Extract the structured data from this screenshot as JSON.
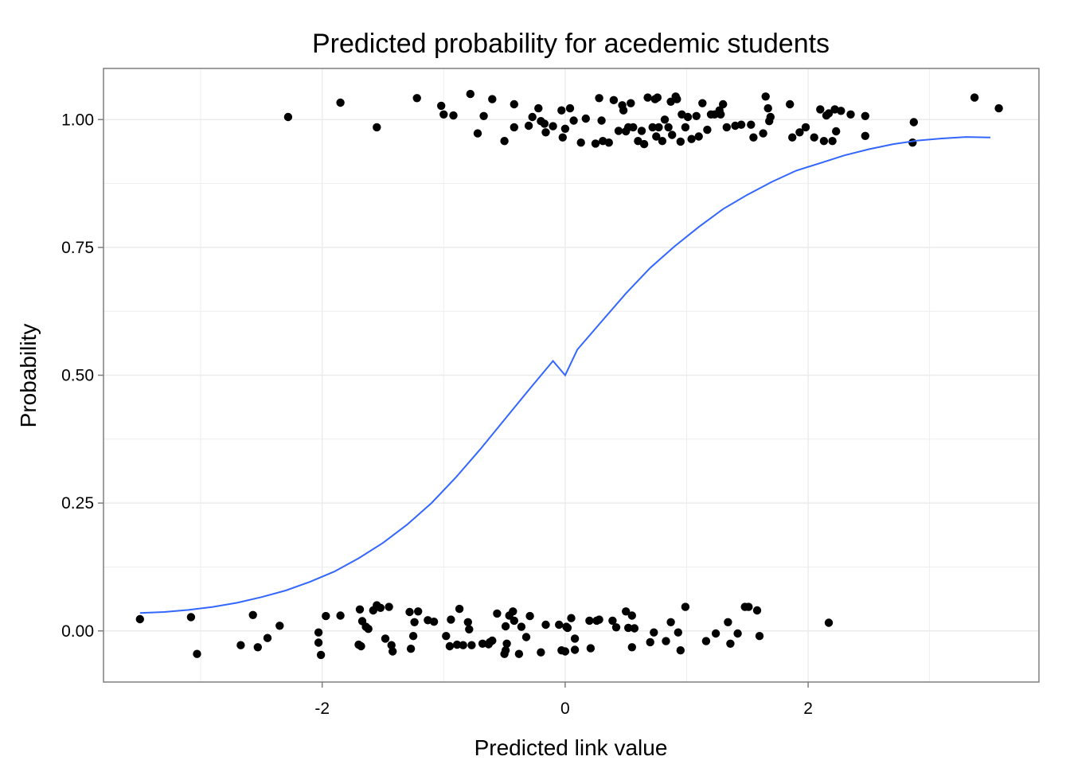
{
  "chart_data": {
    "type": "scatter",
    "title": "Predicted probability for acedemic students",
    "xlabel": "Predicted link value",
    "ylabel": "Probability",
    "xlim": [
      -3.8,
      3.9
    ],
    "ylim": [
      -0.1,
      1.1
    ],
    "x_ticks": [
      {
        "value": -2,
        "label": "-2"
      },
      {
        "value": 0,
        "label": "0"
      },
      {
        "value": 2,
        "label": "2"
      }
    ],
    "y_ticks": [
      {
        "value": 0,
        "label": "0.00"
      },
      {
        "value": 0.25,
        "label": "0.25"
      },
      {
        "value": 0.5,
        "label": "0.50"
      },
      {
        "value": 0.75,
        "label": "0.75"
      },
      {
        "value": 1,
        "label": "1.00"
      }
    ],
    "grid": true,
    "legend": "none",
    "colors": {
      "points": "#000000",
      "curve": "#3366ff",
      "grid": "#ebebeb",
      "panel_border": "#7f7f7f"
    },
    "series": [
      {
        "type": "scatter",
        "points": [
          [
            -2.28,
            1.005
          ],
          [
            -1.85,
            1.033
          ],
          [
            -1.55,
            0.985
          ],
          [
            -1.22,
            1.042
          ],
          [
            -1.02,
            1.027
          ],
          [
            -1.0,
            1.01
          ],
          [
            -0.92,
            1.008
          ],
          [
            -0.78,
            1.05
          ],
          [
            -0.72,
            0.973
          ],
          [
            -0.67,
            1.007
          ],
          [
            -0.6,
            1.04
          ],
          [
            -0.5,
            0.958
          ],
          [
            -0.42,
            1.03
          ],
          [
            -0.42,
            0.985
          ],
          [
            -0.3,
            0.988
          ],
          [
            -0.27,
            1.005
          ],
          [
            -0.22,
            1.022
          ],
          [
            -0.2,
            0.997
          ],
          [
            -0.17,
            0.992
          ],
          [
            -0.16,
            0.975
          ],
          [
            -0.1,
            0.987
          ],
          [
            -0.03,
            1.018
          ],
          [
            -0.02,
            0.965
          ],
          [
            0.0,
            0.982
          ],
          [
            0.04,
            1.022
          ],
          [
            0.07,
            0.998
          ],
          [
            0.13,
            0.955
          ],
          [
            0.17,
            1.002
          ],
          [
            0.25,
            0.953
          ],
          [
            0.28,
            1.042
          ],
          [
            0.3,
            0.998
          ],
          [
            0.31,
            0.958
          ],
          [
            0.36,
            0.955
          ],
          [
            0.4,
            1.038
          ],
          [
            0.44,
            0.978
          ],
          [
            0.47,
            1.028
          ],
          [
            0.48,
            1.018
          ],
          [
            0.5,
            0.977
          ],
          [
            0.52,
            0.985
          ],
          [
            0.54,
            1.032
          ],
          [
            0.56,
            0.985
          ],
          [
            0.6,
            0.958
          ],
          [
            0.63,
            0.978
          ],
          [
            0.65,
            0.952
          ],
          [
            0.68,
            1.043
          ],
          [
            0.72,
            0.985
          ],
          [
            0.74,
            1.04
          ],
          [
            0.75,
            0.967
          ],
          [
            0.76,
            1.043
          ],
          [
            0.77,
            0.985
          ],
          [
            0.8,
            0.958
          ],
          [
            0.82,
            1.0
          ],
          [
            0.85,
            0.985
          ],
          [
            0.87,
            1.035
          ],
          [
            0.88,
            0.97
          ],
          [
            0.91,
            1.045
          ],
          [
            0.92,
            1.04
          ],
          [
            0.95,
            0.957
          ],
          [
            0.96,
            1.01
          ],
          [
            0.99,
            0.985
          ],
          [
            1.01,
            1.005
          ],
          [
            1.04,
            0.962
          ],
          [
            1.08,
            1.007
          ],
          [
            1.1,
            0.967
          ],
          [
            1.13,
            1.032
          ],
          [
            1.17,
            0.98
          ],
          [
            1.2,
            1.01
          ],
          [
            1.23,
            1.01
          ],
          [
            1.27,
            1.018
          ],
          [
            1.28,
            1.01
          ],
          [
            1.3,
            1.03
          ],
          [
            1.33,
            0.985
          ],
          [
            1.4,
            0.988
          ],
          [
            1.45,
            0.99
          ],
          [
            1.53,
            0.99
          ],
          [
            1.55,
            0.965
          ],
          [
            1.63,
            0.973
          ],
          [
            1.65,
            1.045
          ],
          [
            1.67,
            1.022
          ],
          [
            1.69,
            1.005
          ],
          [
            1.68,
            0.997
          ],
          [
            1.85,
            1.03
          ],
          [
            1.87,
            0.965
          ],
          [
            1.93,
            0.975
          ],
          [
            1.98,
            0.985
          ],
          [
            2.05,
            0.965
          ],
          [
            2.1,
            1.02
          ],
          [
            2.13,
            0.958
          ],
          [
            2.15,
            1.008
          ],
          [
            2.17,
            1.012
          ],
          [
            2.2,
            0.958
          ],
          [
            2.22,
            1.02
          ],
          [
            2.23,
            0.977
          ],
          [
            2.27,
            1.017
          ],
          [
            2.35,
            1.01
          ],
          [
            2.47,
            0.968
          ],
          [
            2.47,
            1.007
          ],
          [
            2.86,
            0.955
          ],
          [
            2.87,
            0.995
          ],
          [
            3.37,
            1.043
          ],
          [
            3.57,
            1.022
          ],
          [
            -3.5,
            0.023
          ],
          [
            -3.08,
            0.027
          ],
          [
            -3.03,
            -0.045
          ],
          [
            -2.67,
            -0.028
          ],
          [
            -2.57,
            0.031
          ],
          [
            -2.53,
            -0.032
          ],
          [
            -2.45,
            -0.014
          ],
          [
            -2.35,
            0.01
          ],
          [
            -2.03,
            -0.003
          ],
          [
            -2.03,
            -0.023
          ],
          [
            -2.01,
            -0.047
          ],
          [
            -1.97,
            0.029
          ],
          [
            -1.85,
            0.03
          ],
          [
            -1.7,
            -0.027
          ],
          [
            -1.69,
            0.042
          ],
          [
            -1.68,
            -0.03
          ],
          [
            -1.67,
            0.019
          ],
          [
            -1.64,
            0.008
          ],
          [
            -1.62,
            0.004
          ],
          [
            -1.58,
            0.04
          ],
          [
            -1.55,
            0.05
          ],
          [
            -1.52,
            0.045
          ],
          [
            -1.48,
            -0.015
          ],
          [
            -1.45,
            0.047
          ],
          [
            -1.43,
            -0.028
          ],
          [
            -1.42,
            -0.04
          ],
          [
            -1.28,
            0.037
          ],
          [
            -1.27,
            -0.035
          ],
          [
            -1.25,
            -0.01
          ],
          [
            -1.24,
            0.017
          ],
          [
            -1.21,
            0.038
          ],
          [
            -1.13,
            0.021
          ],
          [
            -1.08,
            0.018
          ],
          [
            -0.98,
            -0.01
          ],
          [
            -0.95,
            -0.03
          ],
          [
            -0.94,
            0.022
          ],
          [
            -0.89,
            -0.027
          ],
          [
            -0.87,
            0.043
          ],
          [
            -0.84,
            -0.028
          ],
          [
            -0.8,
            0.017
          ],
          [
            -0.79,
            0.003
          ],
          [
            -0.77,
            -0.028
          ],
          [
            -0.68,
            -0.025
          ],
          [
            -0.63,
            -0.026
          ],
          [
            -0.62,
            -0.022
          ],
          [
            -0.6,
            -0.019
          ],
          [
            -0.56,
            0.034
          ],
          [
            -0.5,
            -0.045
          ],
          [
            -0.49,
            -0.038
          ],
          [
            -0.49,
            0.009
          ],
          [
            -0.48,
            -0.025
          ],
          [
            -0.46,
            0.03
          ],
          [
            -0.43,
            0.038
          ],
          [
            -0.42,
            0.02
          ],
          [
            -0.38,
            -0.045
          ],
          [
            -0.36,
            0.008
          ],
          [
            -0.32,
            -0.012
          ],
          [
            -0.29,
            0.029
          ],
          [
            -0.2,
            -0.042
          ],
          [
            -0.16,
            0.012
          ],
          [
            -0.05,
            0.012
          ],
          [
            -0.03,
            -0.038
          ],
          [
            0.0,
            -0.04
          ],
          [
            0.01,
            0.008
          ],
          [
            0.02,
            0.006
          ],
          [
            0.05,
            0.025
          ],
          [
            0.08,
            -0.015
          ],
          [
            0.08,
            -0.037
          ],
          [
            0.2,
            0.02
          ],
          [
            0.21,
            -0.034
          ],
          [
            0.26,
            0.02
          ],
          [
            0.28,
            0.022
          ],
          [
            0.39,
            0.02
          ],
          [
            0.42,
            0.007
          ],
          [
            0.5,
            0.038
          ],
          [
            0.52,
            0.006
          ],
          [
            0.55,
            0.03
          ],
          [
            0.55,
            -0.032
          ],
          [
            0.57,
            0.005
          ],
          [
            0.7,
            -0.022
          ],
          [
            0.73,
            -0.003
          ],
          [
            0.83,
            -0.02
          ],
          [
            0.87,
            0.017
          ],
          [
            0.93,
            -0.003
          ],
          [
            0.95,
            -0.038
          ],
          [
            0.99,
            0.047
          ],
          [
            1.16,
            -0.02
          ],
          [
            1.24,
            -0.005
          ],
          [
            1.34,
            0.017
          ],
          [
            1.36,
            -0.025
          ],
          [
            1.42,
            -0.005
          ],
          [
            1.48,
            0.047
          ],
          [
            1.51,
            0.047
          ],
          [
            1.58,
            0.04
          ],
          [
            1.6,
            -0.01
          ],
          [
            2.17,
            0.016
          ]
        ]
      },
      {
        "type": "line",
        "points": [
          [
            -3.5,
            0.035
          ],
          [
            -3.3,
            0.037
          ],
          [
            -3.1,
            0.041
          ],
          [
            -2.9,
            0.047
          ],
          [
            -2.7,
            0.055
          ],
          [
            -2.5,
            0.066
          ],
          [
            -2.3,
            0.079
          ],
          [
            -2.1,
            0.096
          ],
          [
            -1.9,
            0.116
          ],
          [
            -1.7,
            0.142
          ],
          [
            -1.5,
            0.172
          ],
          [
            -1.3,
            0.208
          ],
          [
            -1.1,
            0.25
          ],
          [
            -0.9,
            0.3
          ],
          [
            -0.7,
            0.355
          ],
          [
            -0.5,
            0.413
          ],
          [
            -0.3,
            0.471
          ],
          [
            -0.1,
            0.528
          ],
          [
            0.0,
            0.5
          ],
          [
            0.1,
            0.55
          ],
          [
            0.3,
            0.605
          ],
          [
            0.5,
            0.66
          ],
          [
            0.7,
            0.71
          ],
          [
            0.9,
            0.752
          ],
          [
            1.1,
            0.79
          ],
          [
            1.3,
            0.825
          ],
          [
            1.5,
            0.853
          ],
          [
            1.7,
            0.878
          ],
          [
            1.9,
            0.9
          ],
          [
            2.1,
            0.915
          ],
          [
            2.3,
            0.93
          ],
          [
            2.5,
            0.942
          ],
          [
            2.7,
            0.952
          ],
          [
            2.9,
            0.959
          ],
          [
            3.1,
            0.963
          ],
          [
            3.3,
            0.966
          ],
          [
            3.5,
            0.965
          ]
        ]
      }
    ]
  }
}
